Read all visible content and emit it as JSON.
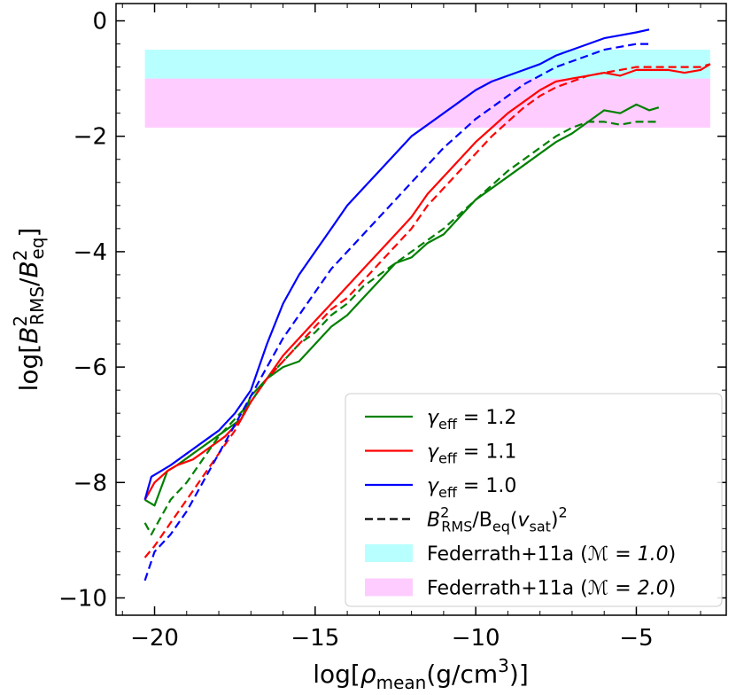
{
  "chart_data": {
    "type": "line",
    "xlabel": "log[ρmean(g/cm3)]",
    "ylabel": "log[B²RMS/B²eq]",
    "xlim": [
      -21.2,
      -2.2
    ],
    "ylim": [
      -10.3,
      0.3
    ],
    "xticks": [
      -20,
      -15,
      -10,
      -5
    ],
    "xtick_labels": [
      "−20",
      "−15",
      "−10",
      "−5"
    ],
    "yticks": [
      0,
      -2,
      -4,
      -6,
      -8,
      -10
    ],
    "ytick_labels": [
      "0",
      "−2",
      "−4",
      "−6",
      "−8",
      "−10"
    ],
    "bands": [
      {
        "name": "Federrath+11a (M = 1.0)",
        "legend_text": "Federrath+11a (",
        "legend_math": "ℳ = 1.0",
        "legend_close": ")",
        "y0": -1.0,
        "y1": -0.5,
        "x0": -20.3,
        "x1": -2.7,
        "color": "#88ffff"
      },
      {
        "name": "Federrath+11a (M = 2.0)",
        "legend_text": "Federrath+11a (",
        "legend_math": "ℳ = 2.0",
        "legend_close": ")",
        "y0": -1.85,
        "y1": -1.0,
        "x0": -20.3,
        "x1": -2.7,
        "color": "#ffaaff"
      }
    ],
    "series": [
      {
        "name": "γeff = 1.2",
        "legend_sym": "γ",
        "legend_sub": "eff",
        "legend_rest": " = 1.2",
        "color": "#008000",
        "dash": false,
        "x": [
          -20.3,
          -20.0,
          -19.6,
          -19.3,
          -18.8,
          -18.3,
          -17.8,
          -17.3,
          -17.0,
          -16.5,
          -16.0,
          -15.5,
          -15.0,
          -14.5,
          -14.0,
          -13.5,
          -13.0,
          -12.5,
          -12.0,
          -11.5,
          -11.0,
          -10.5,
          -10.0,
          -9.5,
          -9.0,
          -8.5,
          -8.0,
          -7.5,
          -7.0,
          -6.5,
          -6.0,
          -5.5,
          -5.0,
          -4.6,
          -4.3
        ],
        "y": [
          -8.3,
          -8.4,
          -7.8,
          -7.7,
          -7.5,
          -7.3,
          -7.1,
          -6.9,
          -6.5,
          -6.2,
          -6.0,
          -5.9,
          -5.6,
          -5.3,
          -5.1,
          -4.8,
          -4.5,
          -4.2,
          -4.1,
          -3.85,
          -3.7,
          -3.4,
          -3.1,
          -2.9,
          -2.7,
          -2.5,
          -2.3,
          -2.1,
          -1.95,
          -1.75,
          -1.55,
          -1.6,
          -1.45,
          -1.55,
          -1.5
        ]
      },
      {
        "name": "γeff = 1.1",
        "legend_sym": "γ",
        "legend_sub": "eff",
        "legend_rest": " = 1.1",
        "color": "#ff0000",
        "dash": false,
        "x": [
          -20.3,
          -20.0,
          -19.6,
          -19.3,
          -18.8,
          -18.3,
          -17.8,
          -17.3,
          -17.0,
          -16.5,
          -16.0,
          -15.5,
          -15.0,
          -14.5,
          -14.0,
          -13.5,
          -13.0,
          -12.5,
          -12.0,
          -11.5,
          -11.0,
          -10.5,
          -10.0,
          -9.5,
          -9.0,
          -8.5,
          -8.0,
          -7.5,
          -7.0,
          -6.5,
          -6.0,
          -5.5,
          -5.0,
          -4.5,
          -4.0,
          -3.5,
          -3.0,
          -2.7
        ],
        "y": [
          -8.3,
          -8.0,
          -7.8,
          -7.7,
          -7.6,
          -7.4,
          -7.2,
          -6.9,
          -6.6,
          -6.2,
          -5.8,
          -5.5,
          -5.2,
          -4.9,
          -4.6,
          -4.3,
          -4.0,
          -3.7,
          -3.4,
          -3.0,
          -2.7,
          -2.4,
          -2.1,
          -1.85,
          -1.6,
          -1.4,
          -1.2,
          -1.05,
          -1.0,
          -0.95,
          -0.9,
          -0.95,
          -0.85,
          -0.85,
          -0.85,
          -0.9,
          -0.85,
          -0.75
        ]
      },
      {
        "name": "γeff = 1.0",
        "legend_sym": "γ",
        "legend_sub": "eff",
        "legend_rest": " = 1.0",
        "color": "#0000ff",
        "dash": false,
        "x": [
          -20.3,
          -20.1,
          -19.8,
          -19.5,
          -19.0,
          -18.5,
          -18.0,
          -17.5,
          -17.0,
          -16.5,
          -16.0,
          -15.5,
          -15.0,
          -14.5,
          -14.0,
          -13.5,
          -13.0,
          -12.5,
          -12.0,
          -11.5,
          -11.0,
          -10.5,
          -10.0,
          -9.5,
          -9.0,
          -8.5,
          -8.0,
          -7.5,
          -7.0,
          -6.5,
          -6.0,
          -5.5,
          -5.0,
          -4.6
        ],
        "y": [
          -8.3,
          -7.9,
          -7.8,
          -7.7,
          -7.5,
          -7.3,
          -7.1,
          -6.8,
          -6.4,
          -5.6,
          -4.9,
          -4.4,
          -4.0,
          -3.6,
          -3.2,
          -2.9,
          -2.6,
          -2.3,
          -2.0,
          -1.8,
          -1.6,
          -1.4,
          -1.2,
          -1.05,
          -0.95,
          -0.85,
          -0.75,
          -0.6,
          -0.5,
          -0.4,
          -0.3,
          -0.25,
          -0.2,
          -0.15
        ]
      },
      {
        "name": "γeff = 1.2 (vsat)",
        "color": "#008000",
        "dash": true,
        "x": [
          -20.3,
          -20.1,
          -19.9,
          -19.5,
          -19.0,
          -18.5,
          -18.0,
          -17.5,
          -17.0,
          -16.5,
          -16.0,
          -15.5,
          -15.0,
          -14.5,
          -14.0,
          -13.5,
          -13.0,
          -12.5,
          -12.0,
          -11.5,
          -11.0,
          -10.5,
          -10.0,
          -9.5,
          -9.0,
          -8.5,
          -8.0,
          -7.5,
          -7.0,
          -6.5,
          -6.0,
          -5.5,
          -5.0,
          -4.6,
          -4.3
        ],
        "y": [
          -8.7,
          -8.9,
          -8.7,
          -8.3,
          -8.0,
          -7.6,
          -7.2,
          -6.9,
          -6.6,
          -6.2,
          -5.9,
          -5.6,
          -5.4,
          -5.1,
          -4.9,
          -4.6,
          -4.4,
          -4.2,
          -4.0,
          -3.8,
          -3.6,
          -3.35,
          -3.1,
          -2.85,
          -2.6,
          -2.4,
          -2.2,
          -2.0,
          -1.85,
          -1.75,
          -1.75,
          -1.8,
          -1.75,
          -1.75,
          -1.75
        ]
      },
      {
        "name": "γeff = 1.1 (vsat)",
        "color": "#ff0000",
        "dash": true,
        "x": [
          -20.3,
          -20.0,
          -19.5,
          -19.0,
          -18.5,
          -18.0,
          -17.5,
          -17.0,
          -16.5,
          -16.0,
          -15.5,
          -15.0,
          -14.5,
          -14.0,
          -13.5,
          -13.0,
          -12.5,
          -12.0,
          -11.5,
          -11.0,
          -10.5,
          -10.0,
          -9.5,
          -9.0,
          -8.5,
          -8.0,
          -7.5,
          -7.0,
          -6.5,
          -6.0,
          -5.5,
          -5.0,
          -4.5,
          -4.0,
          -3.5,
          -3.0,
          -2.7
        ],
        "y": [
          -9.3,
          -9.1,
          -8.7,
          -8.3,
          -7.9,
          -7.5,
          -7.1,
          -6.6,
          -6.2,
          -5.9,
          -5.6,
          -5.3,
          -5.0,
          -4.8,
          -4.5,
          -4.2,
          -3.9,
          -3.6,
          -3.2,
          -2.9,
          -2.6,
          -2.3,
          -2.0,
          -1.75,
          -1.5,
          -1.3,
          -1.15,
          -1.05,
          -0.95,
          -0.9,
          -0.85,
          -0.8,
          -0.8,
          -0.8,
          -0.8,
          -0.8,
          -0.75
        ]
      },
      {
        "name": "γeff = 1.0 (vsat)",
        "color": "#0000ff",
        "dash": true,
        "x": [
          -20.3,
          -20.0,
          -19.5,
          -19.0,
          -18.5,
          -18.0,
          -17.5,
          -17.0,
          -16.5,
          -16.0,
          -15.5,
          -15.0,
          -14.5,
          -14.0,
          -13.5,
          -13.0,
          -12.5,
          -12.0,
          -11.5,
          -11.0,
          -10.5,
          -10.0,
          -9.5,
          -9.0,
          -8.5,
          -8.0,
          -7.5,
          -7.0,
          -6.5,
          -6.0,
          -5.5,
          -5.0,
          -4.6
        ],
        "y": [
          -9.7,
          -9.2,
          -8.9,
          -8.5,
          -8.0,
          -7.5,
          -7.0,
          -6.5,
          -6.0,
          -5.5,
          -5.1,
          -4.7,
          -4.3,
          -4.0,
          -3.7,
          -3.4,
          -3.1,
          -2.8,
          -2.5,
          -2.2,
          -1.95,
          -1.7,
          -1.5,
          -1.3,
          -1.1,
          -0.95,
          -0.8,
          -0.7,
          -0.6,
          -0.5,
          -0.45,
          -0.4,
          -0.4
        ]
      }
    ],
    "legend_dashed": {
      "text_main": "B",
      "sup1": "2",
      "sub1": "RMS",
      "mid": "/B",
      "sub2": "eq",
      "paren_open": "(",
      "v": "v",
      "sub3": "sat",
      "paren_close": ")",
      "sup2": "2"
    },
    "legend_position": "lower-right",
    "grid": false
  }
}
